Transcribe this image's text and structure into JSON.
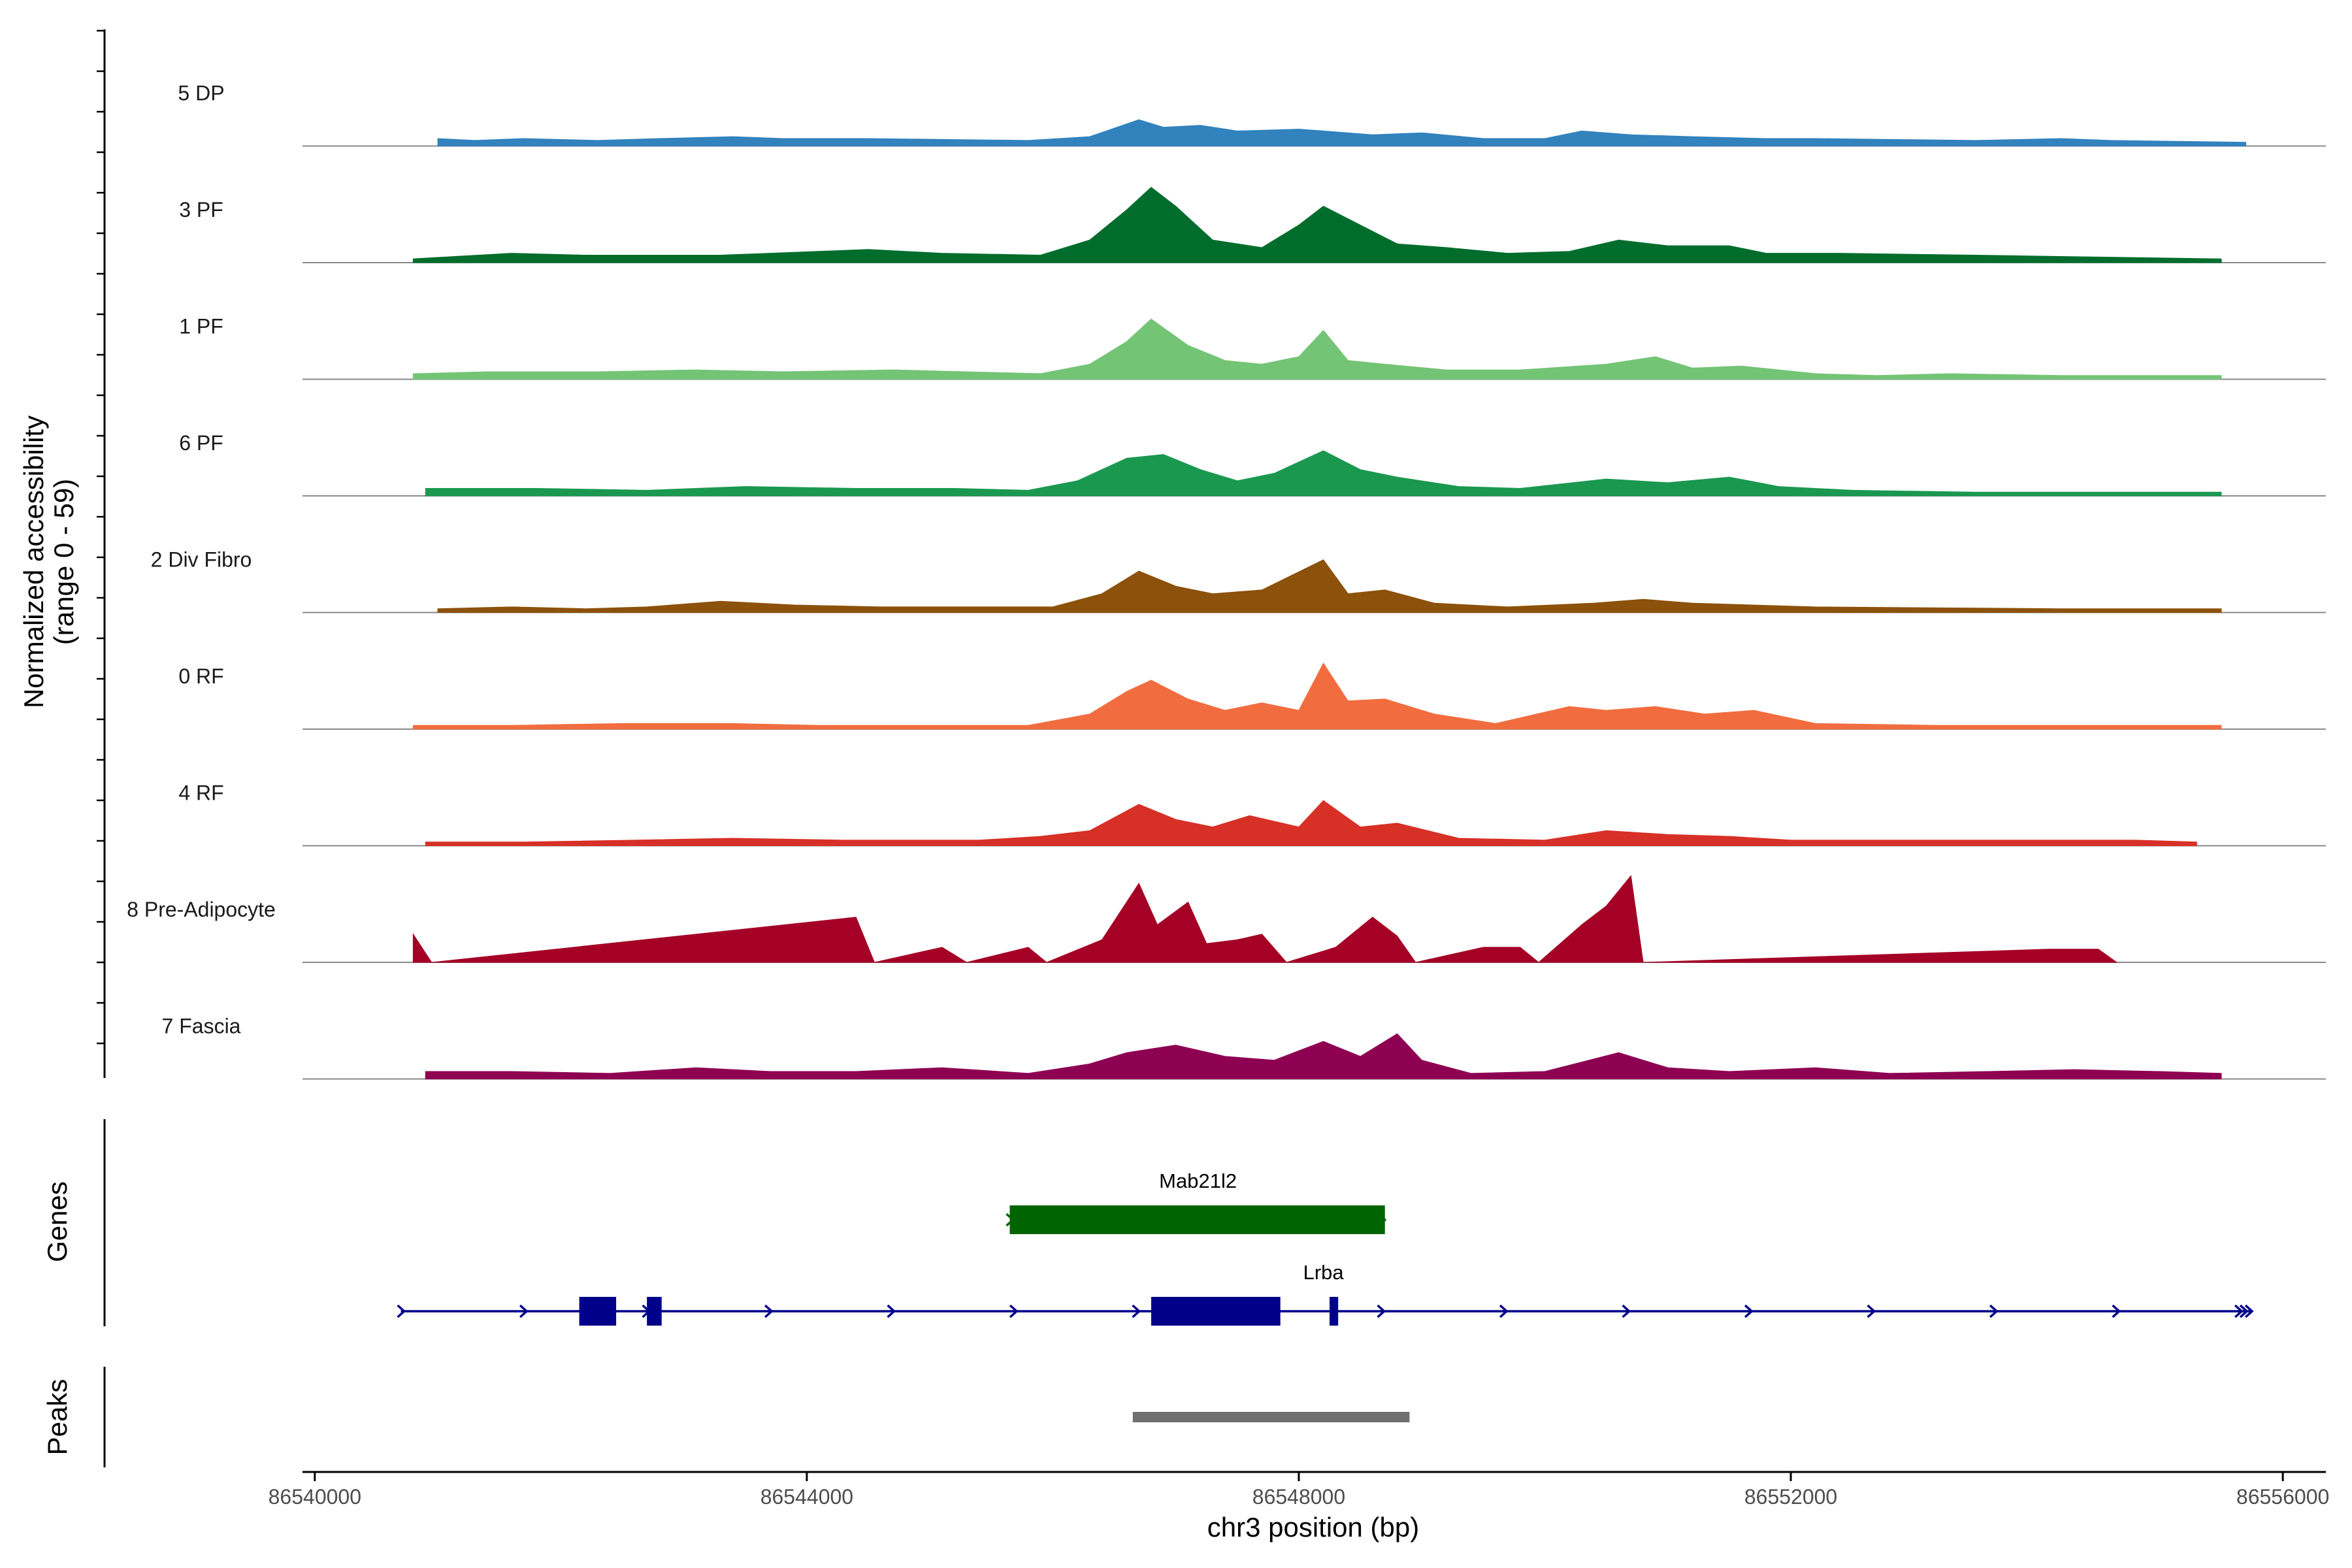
{
  "chart_data": {
    "type": "area",
    "title": "",
    "chromosome": "chr3",
    "xlabel": "chr3 position (bp)",
    "ylabel": "Normalized accessibility\n(range 0 - 59)",
    "ylim": [
      0,
      59
    ],
    "xlim": [
      86539900,
      86556350
    ],
    "x_ticks": [
      86540000,
      86544000,
      86548000,
      86552000,
      86556000
    ],
    "x_tick_labels": [
      "86540000",
      "86544000",
      "86548000",
      "86552000",
      "86556000"
    ],
    "genes_label": "Genes",
    "peaks_label": "Peaks",
    "series": [
      {
        "name": "5 DP",
        "color": "#3182BD",
        "points": [
          [
            86541000,
            4
          ],
          [
            86541300,
            3
          ],
          [
            86541700,
            4
          ],
          [
            86542300,
            3
          ],
          [
            86542800,
            4
          ],
          [
            86543400,
            5
          ],
          [
            86543800,
            4
          ],
          [
            86544500,
            4
          ],
          [
            86545800,
            3
          ],
          [
            86546300,
            5
          ],
          [
            86546700,
            14
          ],
          [
            86546900,
            10
          ],
          [
            86547200,
            11
          ],
          [
            86547500,
            8
          ],
          [
            86548000,
            9
          ],
          [
            86548200,
            8
          ],
          [
            86548600,
            6
          ],
          [
            86549000,
            7
          ],
          [
            86549500,
            4
          ],
          [
            86550000,
            4
          ],
          [
            86550300,
            8
          ],
          [
            86550700,
            6
          ],
          [
            86551200,
            5
          ],
          [
            86551800,
            4
          ],
          [
            86552200,
            4
          ],
          [
            86553500,
            3
          ],
          [
            86554200,
            4
          ],
          [
            86554600,
            3
          ],
          [
            86555700,
            2
          ]
        ]
      },
      {
        "name": "3 PF",
        "color": "#006D2C",
        "points": [
          [
            86540800,
            2
          ],
          [
            86541600,
            5
          ],
          [
            86542200,
            4
          ],
          [
            86543300,
            4
          ],
          [
            86544500,
            7
          ],
          [
            86545100,
            5
          ],
          [
            86545900,
            4
          ],
          [
            86546300,
            12
          ],
          [
            86546600,
            28
          ],
          [
            86546800,
            40
          ],
          [
            86547000,
            30
          ],
          [
            86547300,
            12
          ],
          [
            86547700,
            8
          ],
          [
            86548000,
            20
          ],
          [
            86548200,
            30
          ],
          [
            86548500,
            20
          ],
          [
            86548800,
            10
          ],
          [
            86549200,
            8
          ],
          [
            86549700,
            5
          ],
          [
            86550200,
            6
          ],
          [
            86550600,
            12
          ],
          [
            86551000,
            9
          ],
          [
            86551500,
            9
          ],
          [
            86551800,
            5
          ],
          [
            86552400,
            5
          ],
          [
            86553500,
            4
          ],
          [
            86554500,
            3
          ],
          [
            86555500,
            2
          ]
        ]
      },
      {
        "name": "1 PF",
        "color": "#74C476",
        "points": [
          [
            86540800,
            3
          ],
          [
            86541400,
            4
          ],
          [
            86542300,
            4
          ],
          [
            86543100,
            5
          ],
          [
            86543800,
            4
          ],
          [
            86544700,
            5
          ],
          [
            86545300,
            4
          ],
          [
            86545900,
            3
          ],
          [
            86546300,
            8
          ],
          [
            86546600,
            20
          ],
          [
            86546800,
            32
          ],
          [
            86547100,
            18
          ],
          [
            86547400,
            10
          ],
          [
            86547700,
            8
          ],
          [
            86548000,
            12
          ],
          [
            86548200,
            26
          ],
          [
            86548400,
            10
          ],
          [
            86548700,
            8
          ],
          [
            86549200,
            5
          ],
          [
            86549800,
            5
          ],
          [
            86550500,
            8
          ],
          [
            86550900,
            12
          ],
          [
            86551200,
            6
          ],
          [
            86551600,
            7
          ],
          [
            86552200,
            3
          ],
          [
            86552700,
            2
          ],
          [
            86553300,
            3
          ],
          [
            86554200,
            2
          ],
          [
            86555500,
            2
          ]
        ]
      },
      {
        "name": "6 PF",
        "color": "#1A9850",
        "points": [
          [
            86540900,
            4
          ],
          [
            86541800,
            4
          ],
          [
            86542700,
            3
          ],
          [
            86543500,
            5
          ],
          [
            86544400,
            4
          ],
          [
            86545200,
            4
          ],
          [
            86545800,
            3
          ],
          [
            86546200,
            8
          ],
          [
            86546600,
            20
          ],
          [
            86546900,
            22
          ],
          [
            86547200,
            14
          ],
          [
            86547500,
            8
          ],
          [
            86547800,
            12
          ],
          [
            86548200,
            24
          ],
          [
            86548500,
            14
          ],
          [
            86548800,
            10
          ],
          [
            86549300,
            5
          ],
          [
            86549800,
            4
          ],
          [
            86550500,
            9
          ],
          [
            86551000,
            7
          ],
          [
            86551500,
            10
          ],
          [
            86551900,
            5
          ],
          [
            86552500,
            3
          ],
          [
            86553500,
            2
          ],
          [
            86554500,
            2
          ],
          [
            86555500,
            2
          ]
        ]
      },
      {
        "name": "2 Div Fibro",
        "color": "#8C510A",
        "points": [
          [
            86541000,
            2
          ],
          [
            86541600,
            3
          ],
          [
            86542200,
            2
          ],
          [
            86542700,
            3
          ],
          [
            86543300,
            6
          ],
          [
            86543900,
            4
          ],
          [
            86544600,
            3
          ],
          [
            86545200,
            3
          ],
          [
            86546000,
            3
          ],
          [
            86546400,
            10
          ],
          [
            86546700,
            22
          ],
          [
            86547000,
            14
          ],
          [
            86547300,
            10
          ],
          [
            86547700,
            12
          ],
          [
            86548200,
            28
          ],
          [
            86548400,
            10
          ],
          [
            86548700,
            12
          ],
          [
            86549100,
            5
          ],
          [
            86549700,
            3
          ],
          [
            86550400,
            5
          ],
          [
            86550800,
            7
          ],
          [
            86551200,
            5
          ],
          [
            86552200,
            3
          ],
          [
            86554200,
            2
          ],
          [
            86555500,
            2
          ]
        ]
      },
      {
        "name": "0 RF",
        "color": "#F16D3F",
        "points": [
          [
            86540800,
            2
          ],
          [
            86541600,
            2
          ],
          [
            86542500,
            3
          ],
          [
            86543400,
            3
          ],
          [
            86544100,
            2
          ],
          [
            86544900,
            2
          ],
          [
            86545800,
            2
          ],
          [
            86546300,
            8
          ],
          [
            86546600,
            20
          ],
          [
            86546800,
            26
          ],
          [
            86547100,
            16
          ],
          [
            86547400,
            10
          ],
          [
            86547700,
            14
          ],
          [
            86548000,
            10
          ],
          [
            86548200,
            35
          ],
          [
            86548400,
            15
          ],
          [
            86548700,
            16
          ],
          [
            86549100,
            8
          ],
          [
            86549600,
            3
          ],
          [
            86550200,
            12
          ],
          [
            86550500,
            10
          ],
          [
            86550900,
            12
          ],
          [
            86551300,
            8
          ],
          [
            86551700,
            10
          ],
          [
            86552200,
            3
          ],
          [
            86553200,
            2
          ],
          [
            86554500,
            2
          ],
          [
            86555500,
            2
          ]
        ]
      },
      {
        "name": "4 RF",
        "color": "#D73027",
        "points": [
          [
            86540900,
            2
          ],
          [
            86541700,
            2
          ],
          [
            86542600,
            3
          ],
          [
            86543400,
            4
          ],
          [
            86544300,
            3
          ],
          [
            86544700,
            3
          ],
          [
            86545400,
            3
          ],
          [
            86545900,
            5
          ],
          [
            86546300,
            8
          ],
          [
            86546700,
            22
          ],
          [
            86547000,
            14
          ],
          [
            86547300,
            10
          ],
          [
            86547600,
            16
          ],
          [
            86548000,
            10
          ],
          [
            86548200,
            24
          ],
          [
            86548500,
            10
          ],
          [
            86548800,
            12
          ],
          [
            86549300,
            4
          ],
          [
            86550000,
            3
          ],
          [
            86550500,
            8
          ],
          [
            86551000,
            6
          ],
          [
            86551500,
            5
          ],
          [
            86552000,
            3
          ],
          [
            86553800,
            3
          ],
          [
            86554800,
            3
          ],
          [
            86555300,
            2
          ]
        ]
      },
      {
        "name": "8 Pre-Adipocyte",
        "color": "#A50026",
        "points": [
          [
            86540800,
            15
          ],
          [
            86540950,
            0
          ],
          [
            86544400,
            24
          ],
          [
            86544550,
            0
          ],
          [
            86545100,
            8
          ],
          [
            86545300,
            0
          ],
          [
            86545800,
            8
          ],
          [
            86545950,
            0
          ],
          [
            86546400,
            12
          ],
          [
            86546700,
            42
          ],
          [
            86546850,
            20
          ],
          [
            86547100,
            32
          ],
          [
            86547250,
            10
          ],
          [
            86547500,
            12
          ],
          [
            86547700,
            15
          ],
          [
            86547900,
            0
          ],
          [
            86548300,
            8
          ],
          [
            86548600,
            24
          ],
          [
            86548800,
            14
          ],
          [
            86548950,
            0
          ],
          [
            86549500,
            8
          ],
          [
            86549800,
            8
          ],
          [
            86549950,
            0
          ],
          [
            86550300,
            20
          ],
          [
            86550500,
            30
          ],
          [
            86550700,
            46
          ],
          [
            86550800,
            0
          ],
          [
            86554100,
            7
          ],
          [
            86554500,
            7
          ],
          [
            86554650,
            0
          ]
        ]
      },
      {
        "name": "7 Fascia",
        "color": "#8E0152",
        "points": [
          [
            86540900,
            4
          ],
          [
            86541600,
            4
          ],
          [
            86542400,
            3
          ],
          [
            86543100,
            6
          ],
          [
            86543700,
            4
          ],
          [
            86544400,
            4
          ],
          [
            86545100,
            6
          ],
          [
            86545800,
            3
          ],
          [
            86546300,
            8
          ],
          [
            86546600,
            14
          ],
          [
            86547000,
            18
          ],
          [
            86547400,
            12
          ],
          [
            86547800,
            10
          ],
          [
            86548200,
            20
          ],
          [
            86548500,
            12
          ],
          [
            86548800,
            24
          ],
          [
            86549000,
            10
          ],
          [
            86549400,
            3
          ],
          [
            86550000,
            4
          ],
          [
            86550600,
            14
          ],
          [
            86551000,
            6
          ],
          [
            86551500,
            4
          ],
          [
            86552200,
            6
          ],
          [
            86552800,
            3
          ],
          [
            86553600,
            4
          ],
          [
            86554300,
            5
          ],
          [
            86555000,
            4
          ],
          [
            86555500,
            3
          ]
        ]
      }
    ],
    "genes": [
      {
        "name": "Mab21l2",
        "color": "#006400",
        "start": 86545650,
        "end": 86548700,
        "strand": "+",
        "exons": [
          [
            86545650,
            86548700
          ]
        ]
      },
      {
        "name": "Lrba",
        "color": "#00008B",
        "start": 86540700,
        "end": 86555750,
        "strand": "+",
        "exons": [
          [
            86542150,
            86542450
          ],
          [
            86542700,
            86542820
          ],
          [
            86546800,
            86547850
          ],
          [
            86548250,
            86548320
          ]
        ]
      }
    ],
    "peaks": [
      {
        "start": 86546650,
        "end": 86548900,
        "color": "#707070"
      }
    ]
  }
}
